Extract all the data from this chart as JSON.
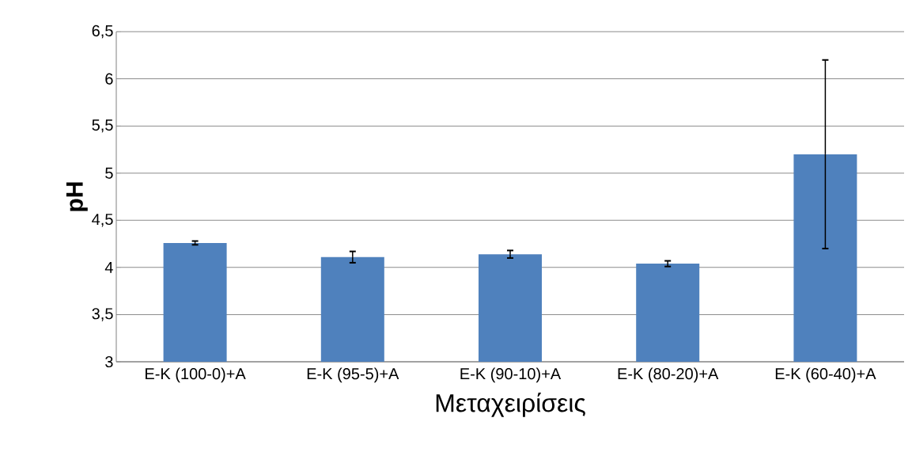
{
  "chart_data": {
    "type": "bar",
    "xlabel": "Μεταχειρίσεις",
    "ylabel": "pH",
    "categories": [
      "Ε-Κ (100-0)+Α",
      "Ε-Κ (95-5)+Α",
      "Ε-Κ (90-10)+Α",
      "Ε-Κ (80-20)+Α",
      "Ε-Κ (60-40)+Α"
    ],
    "values": [
      4.26,
      4.11,
      4.14,
      4.04,
      5.2
    ],
    "errors": [
      0.02,
      0.06,
      0.04,
      0.03,
      1.0
    ],
    "color": "#4f81bd",
    "ylim": [
      3,
      6.5
    ],
    "yticks": [
      3,
      {
        "value": 3.5,
        "label": "3,5"
      },
      4,
      {
        "value": 4.5,
        "label": "4,5"
      },
      5,
      {
        "value": 5.5,
        "label": "5,5"
      },
      6,
      {
        "value": 6.5,
        "label": "6,5"
      }
    ],
    "grid": "y"
  }
}
